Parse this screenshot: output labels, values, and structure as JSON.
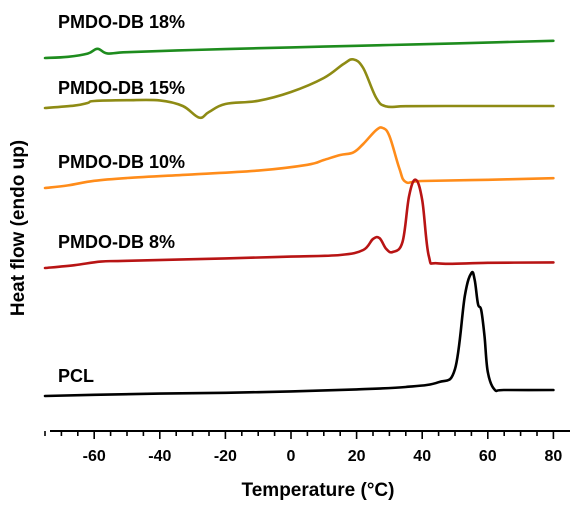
{
  "chart_data": {
    "type": "line",
    "xlabel": "Temperature (°C)",
    "ylabel": "Heat flow (endo up)",
    "xlim": [
      -75,
      80
    ],
    "x_ticks": [
      "-60",
      "-40",
      "-20",
      "0",
      "20",
      "40",
      "60",
      "80"
    ],
    "y_ticks_shown": false,
    "grid": false,
    "legend": "none",
    "series": [
      {
        "name": "PMDO-DB 18%",
        "color": "#1e8c1e",
        "points": [
          [
            -75,
            3.0
          ],
          [
            -68,
            3.6
          ],
          [
            -62,
            5.2
          ],
          [
            -59,
            7.6
          ],
          [
            -56,
            5.3
          ],
          [
            -50,
            5.9
          ],
          [
            -30,
            7.0
          ],
          [
            -10,
            7.9
          ],
          [
            10,
            8.7
          ],
          [
            30,
            9.5
          ],
          [
            50,
            10.3
          ],
          [
            80,
            11.6
          ]
        ]
      },
      {
        "name": "PMDO-DB 15%",
        "color": "#8e8b14",
        "points": [
          [
            -75,
            0.0
          ],
          [
            -66,
            1.2
          ],
          [
            -62,
            2.5
          ],
          [
            -60,
            3.5
          ],
          [
            -50,
            3.9
          ],
          [
            -40,
            3.8
          ],
          [
            -33,
            1.0
          ],
          [
            -28,
            -4.8
          ],
          [
            -25,
            -2.0
          ],
          [
            -20,
            2.0
          ],
          [
            -10,
            3.6
          ],
          [
            0,
            8.0
          ],
          [
            10,
            15.0
          ],
          [
            16,
            22.0
          ],
          [
            19,
            24.3
          ],
          [
            22,
            20.0
          ],
          [
            26,
            5.0
          ],
          [
            29,
            0.8
          ],
          [
            35,
            0.9
          ],
          [
            50,
            1.0
          ],
          [
            65,
            1.0
          ],
          [
            80,
            1.0
          ]
        ]
      },
      {
        "name": "PMDO-DB 10%",
        "color": "#ff8c1a",
        "points": [
          [
            -75,
            0.0
          ],
          [
            -68,
            1.3
          ],
          [
            -60,
            3.6
          ],
          [
            -50,
            5.0
          ],
          [
            -30,
            6.8
          ],
          [
            -10,
            8.7
          ],
          [
            5,
            11.6
          ],
          [
            10,
            14.0
          ],
          [
            15,
            16.5
          ],
          [
            19,
            17.8
          ],
          [
            22,
            22.0
          ],
          [
            26,
            29.0
          ],
          [
            28,
            30.0
          ],
          [
            30,
            26.0
          ],
          [
            33,
            10.0
          ],
          [
            35,
            3.0
          ],
          [
            40,
            3.5
          ],
          [
            60,
            4.1
          ],
          [
            80,
            4.9
          ]
        ]
      },
      {
        "name": "PMDO-DB 8%",
        "color": "#b81414",
        "points": [
          [
            -75,
            0.0
          ],
          [
            -66,
            1.4
          ],
          [
            -58,
            3.2
          ],
          [
            -50,
            3.6
          ],
          [
            -20,
            4.8
          ],
          [
            0,
            5.7
          ],
          [
            15,
            6.5
          ],
          [
            22,
            9.0
          ],
          [
            25,
            14.5
          ],
          [
            27,
            14.9
          ],
          [
            29,
            9.6
          ],
          [
            31,
            8.0
          ],
          [
            34,
            13.0
          ],
          [
            36,
            36.0
          ],
          [
            38,
            44.1
          ],
          [
            40,
            34.0
          ],
          [
            42,
            6.0
          ],
          [
            45,
            2.3
          ],
          [
            60,
            2.6
          ],
          [
            80,
            2.8
          ]
        ]
      },
      {
        "name": "PCL",
        "color": "#000000",
        "points": [
          [
            -75,
            0.0
          ],
          [
            -60,
            0.6
          ],
          [
            -40,
            1.2
          ],
          [
            -20,
            1.6
          ],
          [
            0,
            2.3
          ],
          [
            20,
            3.3
          ],
          [
            35,
            4.5
          ],
          [
            45,
            6.9
          ],
          [
            50,
            13.5
          ],
          [
            53,
            50.0
          ],
          [
            55,
            61.5
          ],
          [
            56,
            58.0
          ],
          [
            57,
            46.0
          ],
          [
            58,
            43.0
          ],
          [
            59,
            30.0
          ],
          [
            60,
            12.0
          ],
          [
            62,
            3.3
          ],
          [
            65,
            3.0
          ],
          [
            80,
            3.0
          ]
        ]
      }
    ]
  }
}
